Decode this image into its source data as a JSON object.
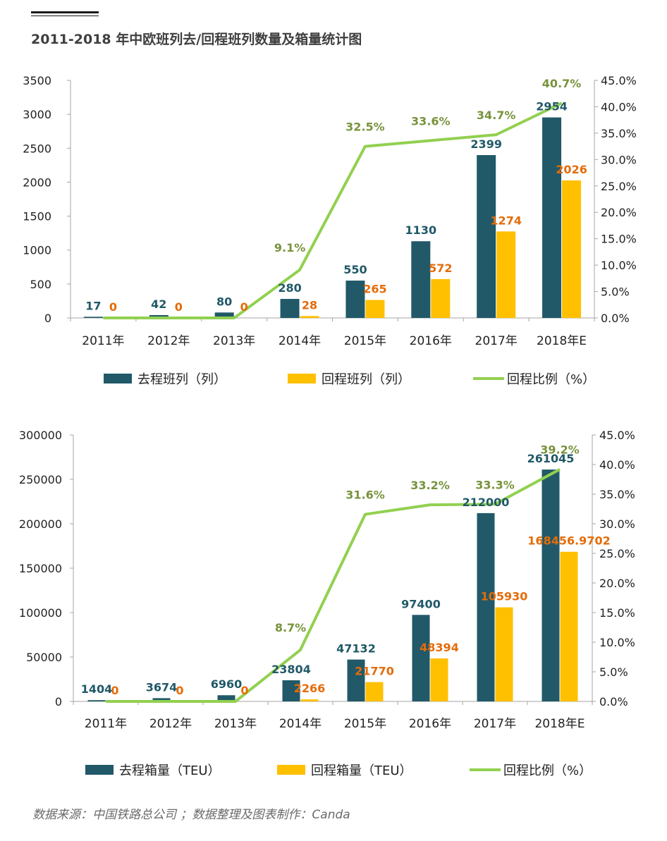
{
  "title": "2011-2018 年中欧班列去/回程班列数量及箱量统计图",
  "source": "数据来源：中国铁路总公司 ；数据整理及图表制作：Canda",
  "colors": {
    "outbound": "#215968",
    "return": "#ffc000",
    "ratio": "#92d050",
    "ratio_label": "#77933c",
    "return_label": "#e46c0a"
  },
  "chart_data": [
    {
      "type": "bar",
      "categories": [
        "2011年",
        "2012年",
        "2013年",
        "2014年",
        "2015年",
        "2016年",
        "2017年",
        "2018年E"
      ],
      "ylim": [
        0,
        3500
      ],
      "yticks": [
        "0",
        "500",
        "1000",
        "1500",
        "2000",
        "2500",
        "3000",
        "3500"
      ],
      "y2lim": [
        0,
        45
      ],
      "y2ticks": [
        "0.0%",
        "5.0%",
        "10.0%",
        "15.0%",
        "20.0%",
        "25.0%",
        "30.0%",
        "35.0%",
        "40.0%",
        "45.0%"
      ],
      "series": [
        {
          "name": "去程班列（列）",
          "kind": "bar",
          "values": [
            17,
            42,
            80,
            280,
            550,
            1130,
            2399,
            2954
          ],
          "labels": [
            "17",
            "42",
            "80",
            "280",
            "550",
            "1130",
            "2399",
            "2954"
          ]
        },
        {
          "name": "回程班列（列）",
          "kind": "bar",
          "values": [
            0,
            0,
            0,
            28,
            265,
            572,
            1274,
            2026
          ],
          "labels": [
            "0",
            "0",
            "0",
            "28",
            "265",
            "572",
            "1274",
            "2026"
          ]
        },
        {
          "name": "回程比例（%）",
          "kind": "line",
          "axis": "right",
          "values": [
            0,
            0,
            0,
            9.1,
            32.5,
            33.6,
            34.7,
            40.7
          ],
          "labels": [
            "",
            "",
            "",
            "9.1%",
            "32.5%",
            "33.6%",
            "34.7%",
            "40.7%"
          ]
        }
      ]
    },
    {
      "type": "bar",
      "categories": [
        "2011年",
        "2012年",
        "2013年",
        "2014年",
        "2015年",
        "2016年",
        "2017年",
        "2018年E"
      ],
      "ylim": [
        0,
        300000
      ],
      "yticks": [
        "0",
        "50000",
        "100000",
        "150000",
        "200000",
        "250000",
        "300000"
      ],
      "y2lim": [
        0,
        45
      ],
      "y2ticks": [
        "0.0%",
        "5.0%",
        "10.0%",
        "15.0%",
        "20.0%",
        "25.0%",
        "30.0%",
        "35.0%",
        "40.0%",
        "45.0%"
      ],
      "series": [
        {
          "name": "去程箱量（TEU）",
          "kind": "bar",
          "values": [
            1404,
            3674,
            6960,
            23804,
            47132,
            97400,
            212000,
            261045
          ],
          "labels": [
            "1404",
            "3674",
            "6960",
            "23804",
            "47132",
            "97400",
            "212000",
            "261045"
          ]
        },
        {
          "name": "回程箱量（TEU）",
          "kind": "bar",
          "values": [
            0,
            0,
            0,
            2266,
            21770,
            48394,
            105930,
            168456.9702
          ],
          "labels": [
            "0",
            "0",
            "0",
            "2266",
            "21770",
            "48394",
            "105930",
            "168456.9702"
          ]
        },
        {
          "name": "回程比例（%）",
          "kind": "line",
          "axis": "right",
          "values": [
            0,
            0,
            0,
            8.7,
            31.6,
            33.2,
            33.3,
            39.2
          ],
          "labels": [
            "",
            "",
            "",
            "8.7%",
            "31.6%",
            "33.2%",
            "33.3%",
            "39.2%"
          ]
        }
      ]
    }
  ]
}
